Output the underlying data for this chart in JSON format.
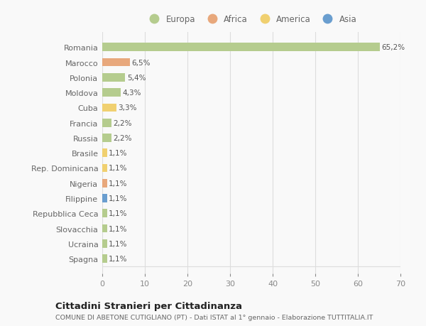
{
  "countries": [
    "Romania",
    "Marocco",
    "Polonia",
    "Moldova",
    "Cuba",
    "Francia",
    "Russia",
    "Brasile",
    "Rep. Dominicana",
    "Nigeria",
    "Filippine",
    "Repubblica Ceca",
    "Slovacchia",
    "Ucraina",
    "Spagna"
  ],
  "values": [
    65.2,
    6.5,
    5.4,
    4.3,
    3.3,
    2.2,
    2.2,
    1.1,
    1.1,
    1.1,
    1.1,
    1.1,
    1.1,
    1.1,
    1.1
  ],
  "labels": [
    "65,2%",
    "6,5%",
    "5,4%",
    "4,3%",
    "3,3%",
    "2,2%",
    "2,2%",
    "1,1%",
    "1,1%",
    "1,1%",
    "1,1%",
    "1,1%",
    "1,1%",
    "1,1%",
    "1,1%"
  ],
  "colors": [
    "#b5cc8e",
    "#e8a87c",
    "#b5cc8e",
    "#b5cc8e",
    "#f0d070",
    "#b5cc8e",
    "#b5cc8e",
    "#f0d070",
    "#f0d070",
    "#e8a87c",
    "#6a9ecf",
    "#b5cc8e",
    "#b5cc8e",
    "#b5cc8e",
    "#b5cc8e"
  ],
  "legend_labels": [
    "Europa",
    "Africa",
    "America",
    "Asia"
  ],
  "legend_colors": [
    "#b5cc8e",
    "#e8a87c",
    "#f0d070",
    "#6a9ecf"
  ],
  "xlim": [
    0,
    70
  ],
  "xticks": [
    0,
    10,
    20,
    30,
    40,
    50,
    60,
    70
  ],
  "title": "Cittadini Stranieri per Cittadinanza",
  "subtitle": "COMUNE DI ABETONE CUTIGLIANO (PT) - Dati ISTAT al 1° gennaio - Elaborazione TUTTITALIA.IT",
  "background_color": "#f9f9f9",
  "grid_color": "#dddddd"
}
